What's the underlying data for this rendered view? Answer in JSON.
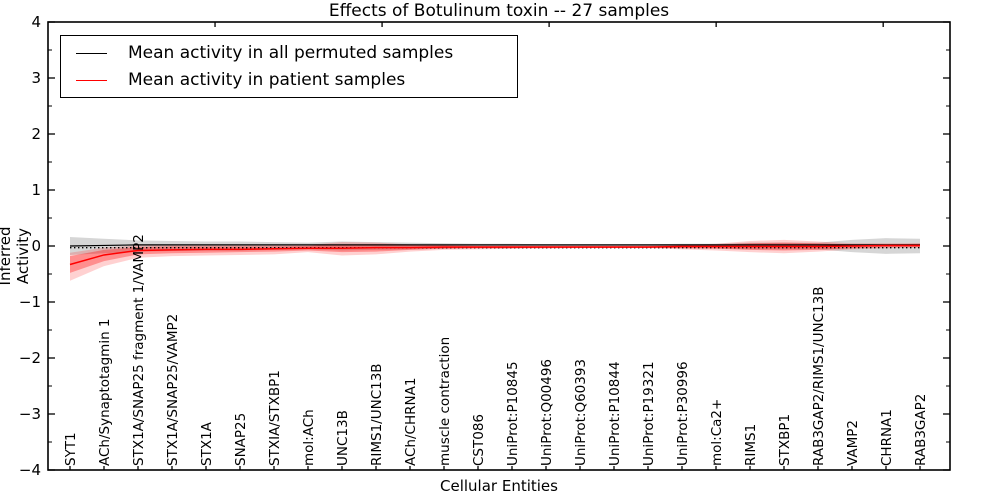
{
  "title": "Effects of Botulinum toxin -- 27 samples",
  "axes": {
    "ylabel": "Inferred Activity",
    "xlabel": "Cellular Entities",
    "yticks": [
      "4",
      "3",
      "2",
      "1",
      "0",
      "−1",
      "−2",
      "−3",
      "−4"
    ],
    "ylim": [
      -4,
      4
    ]
  },
  "legend": [
    {
      "label": "Mean activity in all permuted samples",
      "color": "#000000"
    },
    {
      "label": "Mean activity in patient samples",
      "color": "#ff0000"
    }
  ],
  "colors": {
    "patient": "#ff0000",
    "permuted": "#000000",
    "patient_band": "#ff0000",
    "permuted_band": "#000000",
    "background": "#ffffff"
  },
  "chart_data": {
    "type": "line",
    "title": "Effects of Botulinum toxin -- 27 samples",
    "xlabel": "Cellular Entities",
    "ylabel": "Inferred Activity",
    "ylim": [
      -4,
      4
    ],
    "grid": false,
    "legend_position": "upper left",
    "top_axis": {
      "range": [
        0,
        27
      ],
      "ticks": [
        5,
        10,
        15,
        20,
        25
      ]
    },
    "categories": [
      "SYT1",
      "ACh/Synaptotagmin 1",
      "STX1A/SNAP25 fragment 1/VAMP2",
      "STX1A/SNAP25/VAMP2",
      "STX1A",
      "SNAP25",
      "STXIA/STXBP1",
      "mol:ACh",
      "UNC13B",
      "RIMS1/UNC13B",
      "ACh/CHRNA1",
      "muscle contraction",
      "CST086",
      "UniProt:P10845",
      "UniProt:Q00496",
      "UniProt:Q60393",
      "UniProt:P10844",
      "UniProt:P19321",
      "UniProt:P30996",
      "mol:Ca2+",
      "RIMS1",
      "STXBP1",
      "RAB3GAP2/RIMS1/UNC13B",
      "VAMP2",
      "CHRNA1",
      "RAB3GAP2"
    ],
    "series": [
      {
        "name": "Mean activity in all permuted samples",
        "color": "#000000",
        "style": "solid",
        "width": 1.2,
        "values": [
          0,
          0.01,
          0.02,
          0.02,
          0.02,
          0.02,
          0.02,
          0.02,
          0.02,
          0.02,
          0.02,
          0.02,
          0.02,
          0.02,
          0.02,
          0.02,
          0.02,
          0.02,
          0.02,
          0.02,
          0.02,
          0.02,
          0.02,
          0.02,
          0.02,
          0.02
        ]
      },
      {
        "name": "zero-reference",
        "color": "#000000",
        "style": "dotted",
        "width": 1.4,
        "values": [
          -0.03,
          -0.03,
          -0.03,
          -0.03,
          -0.03,
          -0.03,
          -0.03,
          -0.03,
          -0.03,
          -0.03,
          -0.03,
          -0.03,
          -0.03,
          -0.03,
          -0.03,
          -0.03,
          -0.03,
          -0.03,
          -0.03,
          -0.03,
          -0.03,
          -0.03,
          -0.03,
          -0.03,
          -0.03,
          -0.03
        ]
      },
      {
        "name": "Mean activity in patient samples",
        "color": "#ff0000",
        "style": "solid",
        "width": 1.5,
        "values": [
          -0.33,
          -0.16,
          -0.08,
          -0.07,
          -0.06,
          -0.06,
          -0.05,
          -0.04,
          -0.04,
          -0.03,
          -0.03,
          -0.02,
          -0.02,
          -0.02,
          -0.02,
          -0.02,
          -0.02,
          -0.02,
          -0.01,
          -0.01,
          -0.01,
          -0.01,
          -0.01,
          0,
          0.01,
          0.01
        ]
      }
    ],
    "bands": [
      {
        "name": "permuted-range",
        "color": "#000000",
        "alpha": 0.16,
        "lo": [
          -0.16,
          -0.13,
          -0.1,
          -0.09,
          -0.08,
          -0.08,
          -0.07,
          -0.06,
          -0.08,
          -0.07,
          -0.06,
          -0.05,
          -0.04,
          -0.04,
          -0.03,
          -0.03,
          -0.03,
          -0.03,
          -0.04,
          -0.04,
          -0.06,
          -0.06,
          -0.06,
          -0.11,
          -0.14,
          -0.13
        ],
        "hi": [
          0.16,
          0.13,
          0.1,
          0.09,
          0.08,
          0.08,
          0.07,
          0.06,
          0.08,
          0.07,
          0.06,
          0.05,
          0.04,
          0.04,
          0.03,
          0.03,
          0.03,
          0.03,
          0.04,
          0.04,
          0.06,
          0.06,
          0.06,
          0.11,
          0.14,
          0.13
        ]
      },
      {
        "name": "patient-range-outer",
        "color": "#ff0000",
        "alpha": 0.18,
        "lo": [
          -0.62,
          -0.36,
          -0.21,
          -0.18,
          -0.17,
          -0.16,
          -0.15,
          -0.11,
          -0.17,
          -0.15,
          -0.1,
          -0.07,
          -0.06,
          -0.05,
          -0.05,
          -0.04,
          -0.04,
          -0.04,
          -0.06,
          -0.08,
          -0.11,
          -0.13,
          -0.1,
          -0.06,
          -0.04,
          -0.03
        ],
        "hi": [
          -0.12,
          -0.03,
          0.01,
          0.02,
          0.02,
          0.02,
          0.02,
          0.02,
          0.07,
          0.06,
          0.03,
          0.02,
          0.02,
          0.01,
          0.01,
          0.01,
          0.01,
          0.01,
          0.02,
          0.04,
          0.09,
          0.11,
          0.08,
          0.05,
          0.05,
          0.05
        ]
      },
      {
        "name": "patient-range-inner",
        "color": "#ff0000",
        "alpha": 0.32,
        "lo": [
          -0.48,
          -0.27,
          -0.15,
          -0.13,
          -0.12,
          -0.11,
          -0.1,
          -0.08,
          -0.11,
          -0.1,
          -0.07,
          -0.05,
          -0.04,
          -0.04,
          -0.03,
          -0.03,
          -0.03,
          -0.03,
          -0.04,
          -0.05,
          -0.07,
          -0.08,
          -0.07,
          -0.04,
          -0.02,
          -0.02
        ],
        "hi": [
          -0.18,
          -0.07,
          -0.02,
          -0.01,
          -0.01,
          -0.01,
          -0.01,
          0,
          0.03,
          0.03,
          0.01,
          0.01,
          0,
          0,
          0,
          0,
          0,
          0,
          0.01,
          0.02,
          0.05,
          0.06,
          0.05,
          0.03,
          0.03,
          0.04
        ]
      }
    ]
  }
}
